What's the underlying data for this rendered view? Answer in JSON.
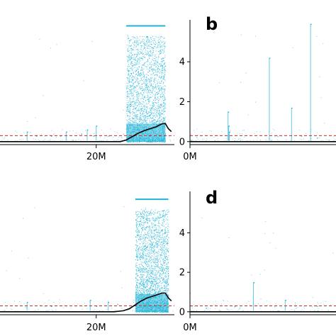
{
  "figure": {
    "colors": {
      "points": "#1fb3d5",
      "trend": "#000000",
      "threshold": "#cc2a2a",
      "axis": "#000000",
      "text": "#000000"
    }
  },
  "chart_data": [
    {
      "panel_label": "",
      "type": "scatter",
      "x_tick_labels": [
        {
          "x": 20,
          "label": "20M"
        }
      ],
      "y_tick_labels": [],
      "xlim": [
        -12,
        46
      ],
      "ylim": [
        -0.15,
        6.1
      ],
      "threshold_y": 0.3,
      "baseline_y": 0.0,
      "trend_line": [
        [
          -12,
          0.0
        ],
        [
          28,
          0.0
        ],
        [
          30,
          0.08
        ],
        [
          32,
          0.25
        ],
        [
          34,
          0.42
        ],
        [
          36,
          0.55
        ],
        [
          38,
          0.65
        ],
        [
          40,
          0.75
        ],
        [
          42,
          0.9
        ],
        [
          43,
          0.9
        ],
        [
          44,
          0.65
        ],
        [
          45,
          0.5
        ]
      ],
      "dense_region": {
        "x": [
          30,
          43
        ],
        "y_max": 5.3,
        "top_band_y": 5.8
      },
      "notable_points": [
        [
          -3,
          0.5
        ],
        [
          0,
          0.3
        ],
        [
          5,
          0.3
        ],
        [
          8,
          0.3
        ],
        [
          10,
          0.5
        ],
        [
          15,
          0.4
        ],
        [
          17,
          0.6
        ],
        [
          19,
          0.3
        ],
        [
          20,
          0.8
        ],
        [
          24,
          0.3
        ]
      ]
    },
    {
      "panel_label": "b",
      "type": "scatter",
      "x_tick_labels": [
        {
          "x": 0,
          "label": "0M"
        }
      ],
      "y_tick_labels": [
        {
          "y": 0,
          "label": "0"
        },
        {
          "y": 2,
          "label": "2"
        },
        {
          "y": 4,
          "label": "4"
        }
      ],
      "xlim": [
        0,
        46
      ],
      "ylim": [
        -0.15,
        6.1
      ],
      "threshold_y": 0.3,
      "baseline_y": 0.0,
      "trend_line": [
        [
          0,
          0.0
        ],
        [
          46,
          0.0
        ]
      ],
      "notable_points": [
        [
          12,
          1.5
        ],
        [
          12.2,
          0.8
        ],
        [
          12.4,
          0.5
        ],
        [
          25,
          4.2
        ],
        [
          32,
          1.7
        ],
        [
          35,
          0.3
        ],
        [
          38,
          5.9
        ],
        [
          40,
          0.2
        ]
      ]
    },
    {
      "panel_label": "",
      "type": "scatter",
      "x_tick_labels": [
        {
          "x": 20,
          "label": "20M"
        }
      ],
      "y_tick_labels": [],
      "xlim": [
        -12,
        46
      ],
      "ylim": [
        -0.15,
        6.1
      ],
      "threshold_y": 0.3,
      "baseline_y": 0.0,
      "trend_line": [
        [
          -12,
          0.0
        ],
        [
          26,
          0.0
        ],
        [
          29,
          0.05
        ],
        [
          31,
          0.15
        ],
        [
          33,
          0.35
        ],
        [
          35,
          0.55
        ],
        [
          37,
          0.7
        ],
        [
          39,
          0.8
        ],
        [
          41,
          0.9
        ],
        [
          42,
          0.95
        ],
        [
          43,
          0.95
        ],
        [
          44,
          0.7
        ],
        [
          45,
          0.55
        ]
      ],
      "dense_region": {
        "x": [
          33,
          44
        ],
        "y_max": 5.2,
        "top_band_y": 5.7
      },
      "notable_points": [
        [
          -3,
          0.5
        ],
        [
          5,
          0.3
        ],
        [
          18,
          0.6
        ],
        [
          20,
          0.3
        ],
        [
          24,
          0.5
        ],
        [
          27,
          0.4
        ]
      ]
    },
    {
      "panel_label": "d",
      "type": "scatter",
      "x_tick_labels": [
        {
          "x": 0,
          "label": "0M"
        }
      ],
      "y_tick_labels": [
        {
          "y": 0,
          "label": "0"
        },
        {
          "y": 2,
          "label": "2"
        },
        {
          "y": 4,
          "label": "4"
        }
      ],
      "xlim": [
        0,
        46
      ],
      "ylim": [
        -0.15,
        6.1
      ],
      "threshold_y": 0.3,
      "baseline_y": 0.0,
      "trend_line": [
        [
          0,
          0.0
        ],
        [
          46,
          0.0
        ]
      ],
      "notable_points": [
        [
          5,
          0.2
        ],
        [
          14,
          0.3
        ],
        [
          20,
          1.5
        ],
        [
          30,
          0.6
        ],
        [
          40,
          0.3
        ]
      ]
    }
  ]
}
